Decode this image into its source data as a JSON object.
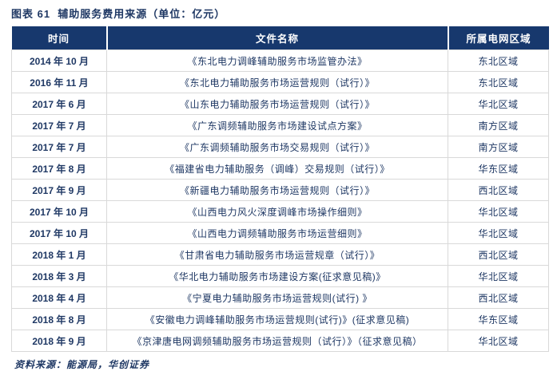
{
  "title": "图表 61  辅助服务费用来源（单位：亿元）",
  "table": {
    "headers": {
      "time": "时间",
      "filename": "文件名称",
      "region": "所属电网区域"
    },
    "rows": [
      {
        "date": "2014 年 10 月",
        "document": "《东北电力调峰辅助服务市场监管办法》",
        "region": "东北区域"
      },
      {
        "date": "2016 年 11 月",
        "document": "《东北电力辅助服务市场运营规则（试行）》",
        "region": "东北区域"
      },
      {
        "date": "2017 年 6 月",
        "document": "《山东电力辅助服务市场运营规则（试行）》",
        "region": "华北区域"
      },
      {
        "date": "2017 年 7 月",
        "document": "《广东调频辅助服务市场建设试点方案》",
        "region": "南方区域"
      },
      {
        "date": "2017 年 7 月",
        "document": "《广东调频辅助服务市场交易规则（试行）》",
        "region": "南方区域"
      },
      {
        "date": "2017 年 8 月",
        "document": "《福建省电力辅助服务（调峰）交易规则（试行）》",
        "region": "华东区域"
      },
      {
        "date": "2017 年 9 月",
        "document": "《新疆电力辅助服务市场运营规则（试行）》",
        "region": "西北区域"
      },
      {
        "date": "2017 年 10 月",
        "document": "《山西电力风火深度调峰市场操作细则》",
        "region": "华北区域"
      },
      {
        "date": "2017 年 10 月",
        "document": "《山西电力调频辅助服务市场运营细则》",
        "region": "华北区域"
      },
      {
        "date": "2018 年 1 月",
        "document": "《甘肃省电力辅助服务市场运营规章（试行）》",
        "region": "西北区域"
      },
      {
        "date": "2018 年 3 月",
        "document": "《华北电力辅助服务市场建设方案(征求意见稿)》",
        "region": "华北区域"
      },
      {
        "date": "2018 年 4 月",
        "document": "《宁夏电力辅助服务市场运营规则(试行) 》",
        "region": "西北区域"
      },
      {
        "date": "2018 年 8 月",
        "document": "《安徽电力调峰辅助服务市场运营规则(试行)》(征求意见稿)",
        "region": "华东区域"
      },
      {
        "date": "2018 年 9 月",
        "document": "《京津唐电网调频辅助服务市场运营规则（试行）》（征求意见稿）",
        "region": "华北区域"
      }
    ]
  },
  "footer": {
    "source": "资料来源：能源局，华创证券"
  },
  "colors": {
    "header_bg": "#17386D",
    "text": "#1F3864",
    "border": "#D9D9D9"
  }
}
